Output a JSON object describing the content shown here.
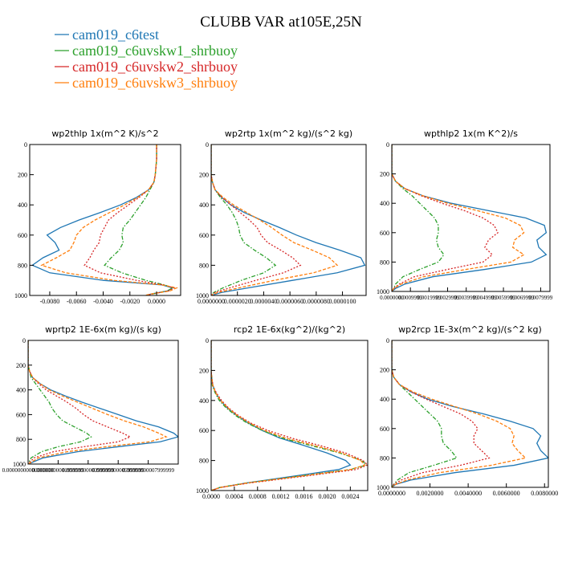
{
  "figure": {
    "title": "CLUBB VAR at105E,25N",
    "legend": [
      {
        "name": "cam019_c6test",
        "color": "#1f77b4"
      },
      {
        "name": "cam019_c6uvskw1_shrbuoy",
        "color": "#2ca02c"
      },
      {
        "name": "cam019_c6uvskw2_shrbuoy",
        "color": "#d62728"
      },
      {
        "name": "cam019_c6uvskw3_shrbuoy",
        "color": "#ff7f0e"
      }
    ]
  },
  "chart_data": [
    {
      "type": "line",
      "title": "wp2thlp   1x(m^2 K)/s^2",
      "xlim": [
        -0.0095,
        0.0018
      ],
      "ylim": [
        1000,
        0
      ],
      "xticks": [
        -0.008,
        -0.006,
        -0.004,
        -0.002,
        0.0
      ],
      "xtick_labels": [
        "-0.0080",
        "-0.0060",
        "-0.0040",
        "-0.0020",
        "0.0000"
      ],
      "yticks": [
        0,
        200,
        400,
        600,
        800,
        1000
      ],
      "y": [
        0,
        100,
        200,
        250,
        300,
        350,
        400,
        450,
        500,
        550,
        600,
        650,
        700,
        750,
        800,
        850,
        900,
        930,
        950,
        970,
        990,
        1000
      ],
      "series": [
        {
          "name": "cam019_c6test",
          "values": [
            0.0,
            0.0,
            -0.0001,
            -0.0002,
            -0.0006,
            -0.0015,
            -0.0027,
            -0.0042,
            -0.0058,
            -0.0072,
            -0.0082,
            -0.0076,
            -0.0073,
            -0.0085,
            -0.0093,
            -0.008,
            -0.004,
            0.0004,
            0.0012,
            0.0008,
            -0.0004,
            -0.0008
          ]
        },
        {
          "name": "cam019_c6uvskw1_shrbuoy",
          "values": [
            0.0,
            0.0,
            -0.0001,
            -0.0002,
            -0.0005,
            -0.0008,
            -0.0012,
            -0.0016,
            -0.002,
            -0.0025,
            -0.0026,
            -0.0025,
            -0.0028,
            -0.0034,
            -0.0039,
            -0.0026,
            -0.0008,
            0.0006,
            0.0012,
            0.0008,
            -0.0003,
            -0.0007
          ]
        },
        {
          "name": "cam019_c6uvskw2_shrbuoy",
          "values": [
            0.0,
            0.0,
            -0.0001,
            -0.0002,
            -0.0006,
            -0.0013,
            -0.0021,
            -0.0029,
            -0.0036,
            -0.0039,
            -0.0042,
            -0.0043,
            -0.0047,
            -0.005,
            -0.0054,
            -0.0042,
            -0.0015,
            0.0005,
            0.0013,
            0.0009,
            -0.0003,
            -0.0008
          ]
        },
        {
          "name": "cam019_c6uvskw3_shrbuoy",
          "values": [
            0.0,
            0.0,
            -0.0001,
            -0.0002,
            -0.0006,
            -0.0014,
            -0.0024,
            -0.0035,
            -0.0046,
            -0.0055,
            -0.006,
            -0.0062,
            -0.0065,
            -0.0075,
            -0.0086,
            -0.0068,
            -0.0032,
            0.0004,
            0.0015,
            0.001,
            -0.0004,
            -0.0009
          ]
        }
      ]
    },
    {
      "type": "line",
      "title": "wp2rtp   1x(m^2 kg)/(s^2 kg)",
      "xlim": [
        0.0,
        1.18e-05
      ],
      "ylim": [
        1000,
        0
      ],
      "xticks": [
        0.0,
        2e-06,
        4e-06,
        6e-06,
        8e-06,
        1e-05
      ],
      "xtick_labels": [
        "0.0000000",
        "0.0000020",
        "0.0000040",
        "0.0000060",
        "0.0000080",
        "0.0000100"
      ],
      "yticks": [
        0,
        200,
        400,
        600,
        800,
        1000
      ],
      "y": [
        0,
        100,
        200,
        250,
        300,
        350,
        400,
        450,
        500,
        550,
        600,
        650,
        700,
        750,
        800,
        850,
        900,
        950,
        980,
        1000
      ],
      "series": [
        {
          "name": "cam019_c6test",
          "values": [
            0.0,
            0.0,
            0.0,
            1e-07,
            3e-07,
            8e-07,
            1.5e-06,
            2.5e-06,
            3.8e-06,
            5.2e-06,
            6.5e-06,
            8e-06,
            9.8e-06,
            1.14e-05,
            1.17e-05,
            9.6e-06,
            6.2e-06,
            2.8e-06,
            8e-07,
            0.0
          ]
        },
        {
          "name": "cam019_c6uvskw1_shrbuoy",
          "values": [
            0.0,
            0.0,
            0.0,
            1e-07,
            3e-07,
            7e-07,
            1.2e-06,
            1.6e-06,
            1.9e-06,
            2.1e-06,
            2.2e-06,
            2.5e-06,
            3.3e-06,
            4.2e-06,
            4.9e-06,
            4e-06,
            2.3e-06,
            9e-07,
            2e-07,
            0.0
          ]
        },
        {
          "name": "cam019_c6uvskw2_shrbuoy",
          "values": [
            0.0,
            0.0,
            0.0,
            1e-07,
            3e-07,
            8e-07,
            1.5e-06,
            2.2e-06,
            2.9e-06,
            3.5e-06,
            3.8e-06,
            4.3e-06,
            5.3e-06,
            6.2e-06,
            6.8e-06,
            5.5e-06,
            3.4e-06,
            1.4e-06,
            3e-07,
            0.0
          ]
        },
        {
          "name": "cam019_c6uvskw3_shrbuoy",
          "values": [
            0.0,
            0.0,
            0.0,
            1e-07,
            3e-07,
            9e-07,
            1.7e-06,
            2.7e-06,
            3.7e-06,
            4.6e-06,
            5.4e-06,
            6.3e-06,
            7.7e-06,
            9e-06,
            9.6e-06,
            7.8e-06,
            4.8e-06,
            2.1e-06,
            5e-07,
            0.0
          ]
        }
      ]
    },
    {
      "type": "line",
      "title": "wpthlp2   1x(m K^2)/s",
      "xlim": [
        0.0,
        0.0085
      ],
      "ylim": [
        1000,
        0
      ],
      "xticks": [
        0.0,
        0.001,
        0.002,
        0.003,
        0.004,
        0.005,
        0.006,
        0.007,
        0.008
      ],
      "xtick_labels": [
        "0.0000000",
        "0.0009999",
        "0.0019999",
        "0.0029999",
        "0.0039999",
        "0.0049999",
        "0.0059999",
        "0.0069999",
        "0.0079999"
      ],
      "yticks": [
        0,
        200,
        400,
        600,
        800,
        1000
      ],
      "y": [
        0,
        100,
        200,
        250,
        300,
        350,
        400,
        450,
        500,
        550,
        600,
        650,
        700,
        750,
        800,
        850,
        900,
        950,
        980,
        1000
      ],
      "series": [
        {
          "name": "cam019_c6test",
          "values": [
            0.0,
            0.0,
            0.0,
            0.0002,
            0.0007,
            0.0017,
            0.0032,
            0.0052,
            0.0072,
            0.0082,
            0.0083,
            0.0078,
            0.0079,
            0.0083,
            0.0075,
            0.005,
            0.0022,
            0.0007,
            0.0002,
            0.0
          ]
        },
        {
          "name": "cam019_c6uvskw1_shrbuoy",
          "values": [
            0.0,
            0.0,
            0.0,
            0.0002,
            0.0006,
            0.0011,
            0.0015,
            0.0019,
            0.0023,
            0.0025,
            0.0025,
            0.0024,
            0.0025,
            0.0028,
            0.0025,
            0.0015,
            0.0006,
            0.0002,
            0.0001,
            0.0
          ]
        },
        {
          "name": "cam019_c6uvskw2_shrbuoy",
          "values": [
            0.0,
            0.0,
            0.0,
            0.0002,
            0.0007,
            0.0016,
            0.0027,
            0.0039,
            0.0049,
            0.0055,
            0.0057,
            0.0052,
            0.005,
            0.0054,
            0.0049,
            0.003,
            0.0012,
            0.0004,
            0.0001,
            0.0
          ]
        },
        {
          "name": "cam019_c6uvskw3_shrbuoy",
          "values": [
            0.0,
            0.0,
            0.0,
            0.0002,
            0.0007,
            0.0017,
            0.003,
            0.0046,
            0.0061,
            0.0069,
            0.0071,
            0.0066,
            0.0065,
            0.0071,
            0.0064,
            0.004,
            0.0017,
            0.0005,
            0.0001,
            0.0
          ]
        }
      ]
    },
    {
      "type": "line",
      "title": "wprtp2   1E-6x(m kg)/(s kg)",
      "xlim": [
        0.0,
        1e-10
      ],
      "ylim": [
        1000,
        0
      ],
      "xticks": [
        0.0,
        2e-11,
        4e-11,
        6e-11,
        8e-11
      ],
      "xtick_labels": [
        "0.00000000000000000",
        "0.00000000001999999",
        "0.00000000003999999",
        "0.00000000005999999",
        "0.00000000007999999"
      ],
      "yticks": [
        0,
        200,
        400,
        600,
        800,
        1000
      ],
      "y": [
        0,
        100,
        200,
        250,
        300,
        350,
        400,
        450,
        500,
        550,
        600,
        650,
        700,
        750,
        780,
        820,
        860,
        900,
        950,
        1000
      ],
      "series": [
        {
          "name": "cam019_c6test",
          "values": [
            0.0,
            0.0,
            0.0,
            1e-12,
            3e-12,
            8e-12,
            1.5e-11,
            2.5e-11,
            3.6e-11,
            4.8e-11,
            6e-11,
            7.2e-11,
            8.7e-11,
            9.7e-11,
            1e-10,
            8.8e-11,
            6e-11,
            3.3e-11,
            1e-11,
            0.0
          ]
        },
        {
          "name": "cam019_c6uvskw1_shrbuoy",
          "values": [
            0.0,
            0.0,
            0.0,
            1e-12,
            2e-12,
            5e-12,
            8e-12,
            1.1e-11,
            1.4e-11,
            1.6e-11,
            1.9e-11,
            2.3e-11,
            3.1e-11,
            3.9e-11,
            4.2e-11,
            3.5e-11,
            2e-11,
            9e-12,
            2e-12,
            0.0
          ]
        },
        {
          "name": "cam019_c6uvskw2_shrbuoy",
          "values": [
            0.0,
            0.0,
            0.0,
            1e-12,
            3e-12,
            7e-12,
            1.2e-11,
            1.9e-11,
            2.6e-11,
            3.2e-11,
            3.7e-11,
            4.3e-11,
            5.3e-11,
            6.3e-11,
            6.8e-11,
            6e-11,
            3.7e-11,
            1.7e-11,
            4e-12,
            0.0
          ]
        },
        {
          "name": "cam019_c6uvskw3_shrbuoy",
          "values": [
            0.0,
            0.0,
            0.0,
            1e-12,
            3e-12,
            8e-12,
            1.4e-11,
            2.3e-11,
            3.3e-11,
            4.3e-11,
            5.3e-11,
            6.4e-11,
            7.7e-11,
            8.7e-11,
            9.2e-11,
            8.1e-11,
            5.2e-11,
            2.6e-11,
            7e-12,
            0.0
          ]
        }
      ]
    },
    {
      "type": "line",
      "title": "rcp2   1E-6x(kg^2)/(kg^2)",
      "xlim": [
        0.0,
        0.0027
      ],
      "ylim": [
        1000,
        0
      ],
      "xticks": [
        0.0,
        0.0004,
        0.0008,
        0.0012,
        0.0016,
        0.002,
        0.0024
      ],
      "xtick_labels": [
        "0.0000",
        "0.0004",
        "0.0008",
        "0.0012",
        "0.0016",
        "0.0020",
        "0.0024"
      ],
      "yticks": [
        0,
        200,
        400,
        600,
        800,
        1000
      ],
      "y": [
        0,
        100,
        200,
        250,
        300,
        350,
        400,
        450,
        500,
        550,
        600,
        650,
        700,
        750,
        800,
        830,
        860,
        900,
        950,
        980,
        1000
      ],
      "series": [
        {
          "name": "cam019_c6test",
          "values": [
            0.0,
            0.0,
            0.0,
            1e-05,
            3e-05,
            8e-05,
            0.00016,
            0.00028,
            0.00044,
            0.00064,
            0.00088,
            0.00118,
            0.0016,
            0.002,
            0.00232,
            0.0024,
            0.0022,
            0.0015,
            0.0006,
            0.00015,
            0.0
          ]
        },
        {
          "name": "cam019_c6uvskw1_shrbuoy",
          "values": [
            0.0,
            0.0,
            0.0,
            1e-05,
            2e-05,
            7e-05,
            0.00014,
            0.00026,
            0.00042,
            0.00062,
            0.00088,
            0.00122,
            0.00172,
            0.00222,
            0.0026,
            0.00268,
            0.0024,
            0.0016,
            0.0006,
            0.00014,
            0.0
          ]
        },
        {
          "name": "cam019_c6uvskw2_shrbuoy",
          "values": [
            0.0,
            0.0,
            0.0,
            1e-05,
            3e-05,
            9e-05,
            0.00018,
            0.0003,
            0.00047,
            0.00068,
            0.00098,
            0.00138,
            0.00188,
            0.00232,
            0.00262,
            0.0027,
            0.0025,
            0.0017,
            0.00065,
            0.00016,
            0.0
          ]
        },
        {
          "name": "cam019_c6uvskw3_shrbuoy",
          "values": [
            0.0,
            0.0,
            0.0,
            1e-05,
            3e-05,
            8e-05,
            0.00016,
            0.00029,
            0.00045,
            0.00066,
            0.00092,
            0.00128,
            0.00178,
            0.00225,
            0.00258,
            0.00265,
            0.0024,
            0.00162,
            0.00062,
            0.00015,
            0.0
          ]
        }
      ]
    },
    {
      "type": "line",
      "title": "wp2rcp   1E-3x(m^2 kg)/(s^2 kg)",
      "xlim": [
        0.0,
        0.0082
      ],
      "ylim": [
        1000,
        0
      ],
      "xticks": [
        0.0,
        0.002,
        0.004,
        0.006,
        0.008
      ],
      "xtick_labels": [
        "0.0000000",
        "0.0020000",
        "0.0040000",
        "0.0060000",
        "0.0080000"
      ],
      "yticks": [
        0,
        200,
        400,
        600,
        800,
        1000
      ],
      "y": [
        0,
        100,
        200,
        250,
        300,
        350,
        400,
        450,
        500,
        550,
        600,
        650,
        700,
        750,
        800,
        850,
        900,
        950,
        980,
        1000
      ],
      "series": [
        {
          "name": "cam019_c6test",
          "values": [
            0.0,
            0.0,
            0.0,
            0.0001,
            0.0004,
            0.001,
            0.0019,
            0.0032,
            0.0048,
            0.0062,
            0.0074,
            0.0078,
            0.0076,
            0.0078,
            0.0082,
            0.0064,
            0.0033,
            0.001,
            0.0002,
            0.0
          ]
        },
        {
          "name": "cam019_c6uvskw1_shrbuoy",
          "values": [
            0.0,
            0.0,
            0.0,
            0.0001,
            0.0004,
            0.0008,
            0.0012,
            0.0016,
            0.002,
            0.0024,
            0.0026,
            0.0026,
            0.0027,
            0.0031,
            0.0034,
            0.0022,
            0.0009,
            0.0003,
            0.0001,
            0.0
          ]
        },
        {
          "name": "cam019_c6uvskw2_shrbuoy",
          "values": [
            0.0,
            0.0,
            0.0,
            0.0001,
            0.0004,
            0.001,
            0.0018,
            0.0027,
            0.0036,
            0.0042,
            0.0045,
            0.0043,
            0.0043,
            0.0047,
            0.0051,
            0.0036,
            0.0016,
            0.0005,
            0.0001,
            0.0
          ]
        },
        {
          "name": "cam019_c6uvskw3_shrbuoy",
          "values": [
            0.0,
            0.0,
            0.0,
            0.0001,
            0.0004,
            0.0011,
            0.0021,
            0.0033,
            0.0045,
            0.0055,
            0.0062,
            0.0064,
            0.0063,
            0.0066,
            0.007,
            0.0052,
            0.0025,
            0.0008,
            0.0002,
            0.0
          ]
        }
      ]
    }
  ]
}
